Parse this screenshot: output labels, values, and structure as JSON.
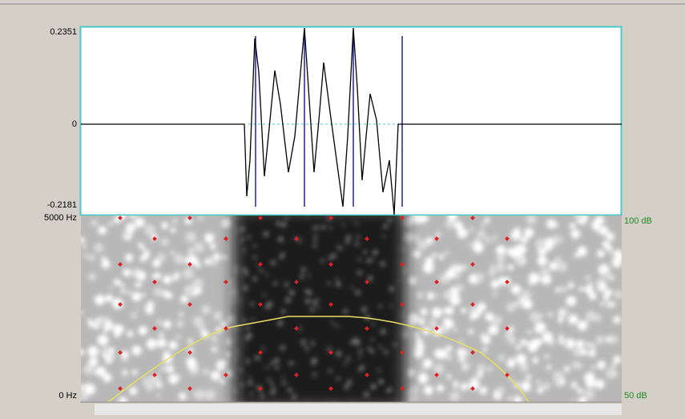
{
  "waveform": {
    "y_max": "0.2351",
    "y_zero": "0",
    "y_min": "-0.2181"
  },
  "spectrogram": {
    "freq_max": "5000 Hz",
    "freq_min": "0 Hz",
    "db_max": "100 dB",
    "db_min": "50 dB"
  }
}
